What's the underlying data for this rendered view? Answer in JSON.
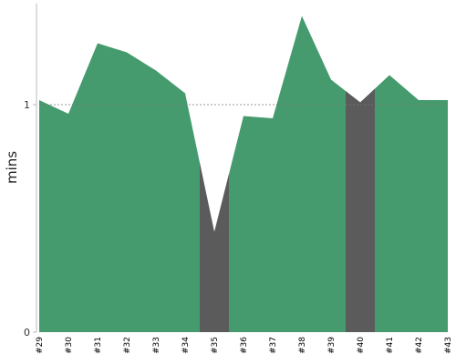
{
  "chart_data": {
    "type": "area",
    "categories": [
      "#29",
      "#30",
      "#31",
      "#32",
      "#33",
      "#34",
      "#35",
      "#36",
      "#37",
      "#38",
      "#39",
      "#40",
      "#41",
      "#42",
      "#43"
    ],
    "values": [
      1.02,
      0.96,
      1.27,
      1.23,
      1.15,
      1.05,
      0.44,
      0.95,
      0.94,
      1.39,
      1.11,
      1.01,
      1.13,
      1.02,
      1.02
    ],
    "highlighted_categories": [
      "#35",
      "#40"
    ],
    "ylabel": "mins",
    "ylim": [
      0,
      1.46
    ],
    "yticks": [
      0,
      1
    ],
    "reference_line": 1,
    "grid": false,
    "legend": "none",
    "colors": {
      "area": "#459b6d",
      "highlight": "#5b5b5b",
      "reference_line": "#777777",
      "axis": "#bbbbbb"
    }
  }
}
